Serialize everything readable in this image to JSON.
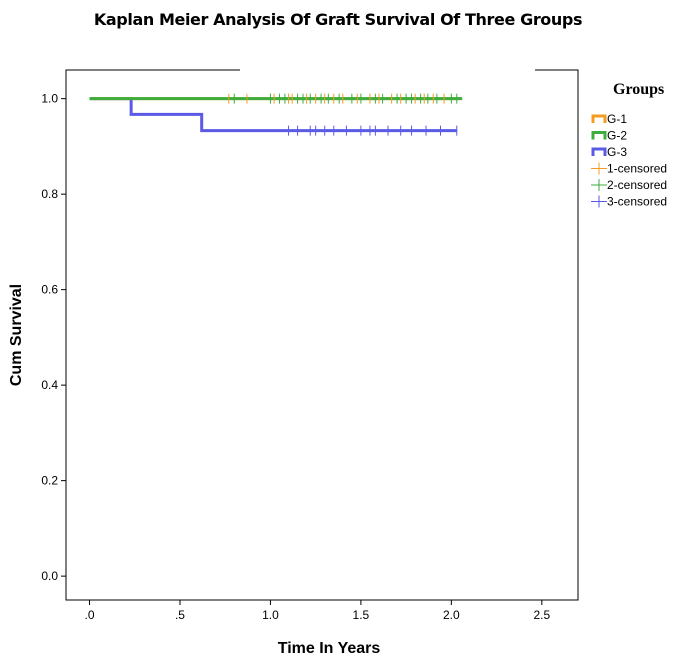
{
  "chart_data": {
    "type": "line",
    "title": "Kaplan Meier Analysis Of Graft Survival Of Three Groups",
    "xlabel": "Time In Years",
    "ylabel": "Cum Survival",
    "xlim": [
      -0.13,
      2.7
    ],
    "ylim": [
      -0.05,
      1.06
    ],
    "xticks": [
      0,
      0.5,
      1.0,
      1.5,
      2.0,
      2.5
    ],
    "xtick_labels": [
      ".0",
      ".5",
      "1.0",
      "1.5",
      "2.0",
      "2.5"
    ],
    "yticks": [
      0,
      0.2,
      0.4,
      0.6,
      0.8,
      1.0
    ],
    "ytick_labels": [
      "0.0",
      "0.2",
      "0.4",
      "0.6",
      "0.8",
      "1.0"
    ],
    "grid": false,
    "legend": {
      "title": "Groups",
      "placement": "right",
      "entries": [
        "G-1",
        "G-2",
        "G-3",
        "1-censored",
        "2-censored",
        "3-censored"
      ]
    },
    "series": [
      {
        "name": "G-1",
        "color": "#f39c21",
        "steps": [
          [
            0,
            1.0
          ],
          [
            2.05,
            1.0
          ]
        ],
        "censored": [
          0.77,
          0.87,
          1.02,
          1.1,
          1.12,
          1.2,
          1.25,
          1.3,
          1.35,
          1.4,
          1.48,
          1.55,
          1.6,
          1.67,
          1.72,
          1.8,
          1.85,
          1.9,
          1.96
        ],
        "censored_name": "1-censored"
      },
      {
        "name": "G-2",
        "color": "#3dad3d",
        "steps": [
          [
            0,
            1.0
          ],
          [
            2.06,
            1.0
          ]
        ],
        "censored": [
          0.8,
          1.0,
          1.05,
          1.08,
          1.15,
          1.18,
          1.22,
          1.28,
          1.32,
          1.38,
          1.45,
          1.5,
          1.58,
          1.62,
          1.7,
          1.75,
          1.78,
          1.83,
          1.87,
          1.92,
          2.0,
          2.03
        ],
        "censored_name": "2-censored"
      },
      {
        "name": "G-3",
        "color": "#5a5ae6",
        "steps": [
          [
            0,
            1.0
          ],
          [
            0.23,
            0.967
          ],
          [
            0.62,
            0.933
          ],
          [
            2.03,
            0.933
          ]
        ],
        "censored": [
          1.1,
          1.15,
          1.22,
          1.25,
          1.3,
          1.35,
          1.42,
          1.5,
          1.55,
          1.58,
          1.65,
          1.72,
          1.78,
          1.86,
          1.94,
          2.03
        ],
        "censored_name": "3-censored"
      }
    ]
  }
}
